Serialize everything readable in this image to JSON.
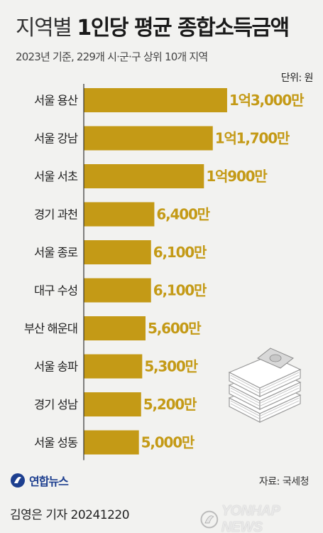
{
  "header": {
    "title_light": "지역별",
    "title_bold": "1인당 평균 종합소득금액",
    "subtitle": "2023년 기준, 229개 시·군·구 상위 10개 지역",
    "unit": "단위: 원"
  },
  "chart_data": {
    "type": "bar",
    "orientation": "horizontal",
    "title": "지역별 1인당 평균 종합소득금액",
    "subtitle": "2023년 기준, 229개 시·군·구 상위 10개 지역",
    "unit": "단위: 원",
    "categories": [
      "서울 용산",
      "서울 강남",
      "서울 서초",
      "경기 과천",
      "서울 종로",
      "대구 수성",
      "부산 해운대",
      "서울 송파",
      "경기 성남",
      "서울 성동"
    ],
    "values": [
      13000,
      11700,
      10900,
      6400,
      6100,
      6100,
      5600,
      5300,
      5200,
      5000
    ],
    "value_labels": [
      "1억3,000만",
      "1억1,700만",
      "1억900만",
      "6,400만",
      "6,100만",
      "6,100만",
      "5,600만",
      "5,300만",
      "5,200만",
      "5,000만"
    ],
    "xlim": [
      0,
      15000
    ],
    "xticks": [
      0,
      3000,
      6000,
      9000,
      12000,
      15000
    ],
    "bar_color": "#c49a16",
    "label_color": "#c49a16",
    "grid": false
  },
  "footer": {
    "source": "자료: 국세청",
    "logo_text": "연합뉴스",
    "byline": "김영은 기자 20241220",
    "watermark": "YONHAP NEWS"
  },
  "icons": [
    "money-stack-icon",
    "yonhap-logo-icon",
    "yonhap-watermark-icon"
  ]
}
